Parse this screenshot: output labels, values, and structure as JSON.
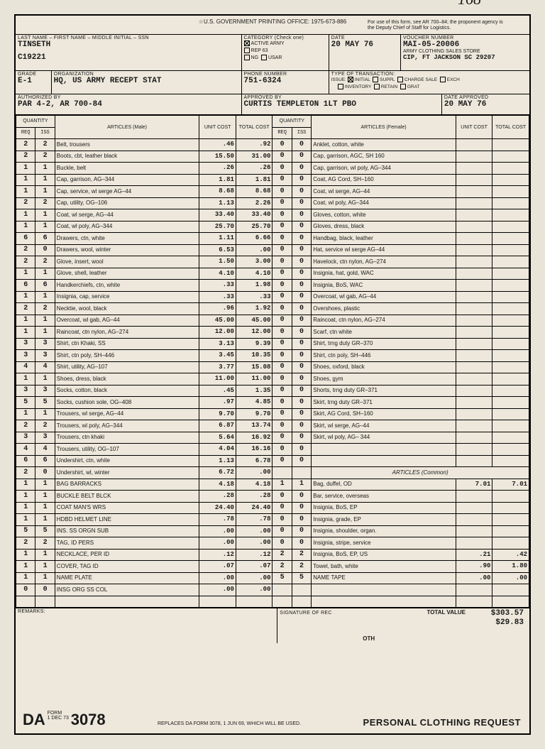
{
  "header": {
    "printing": "☆U.S. GOVERNMENT PRINTING OFFICE: 1975-673-886",
    "forUse": "For use of this form, see AR 700–84; the proponent agency is the Deputy Chief of Staff for Logistics.",
    "handwritten": "168"
  },
  "fields": {
    "nameLabel": "LAST NAME – FIRST NAME – MIDDLE INITIAL – SSN",
    "name": "TINSETH",
    "ssn": "C19221",
    "categoryLabel": "CATEGORY (Check one)",
    "catActive": "ACTIVE ARMY",
    "catRep": "REP 63",
    "catNg": "NG",
    "catUsar": "USAR",
    "dateLabel": "DATE",
    "date": "20 MAY 76",
    "voucherLabel": "VOUCHER NUMBER",
    "voucher": "MAI-05-20006",
    "store": "ARMY CLOTHING SALES STORE",
    "storeAddr": "CIP, FT JACKSON SC 29207",
    "gradeLabel": "GRADE",
    "grade": "E-1",
    "orgLabel": "ORGANIZATION",
    "org": "HQ, US ARMY RECEPT STAT",
    "phoneLabel": "PHONE NUMBER",
    "phone": "751-6324",
    "txnLabel": "TYPE OF TRANSACTION:",
    "txnIssue": "ISSUE:",
    "txnInitial": "INITIAL",
    "txnSuppl": "SUPPL",
    "txnCharge": "CHARGE SALE",
    "txnExch": "EXCH",
    "txnInv": "INVENTORY",
    "txnRetain": "RETAIN",
    "txnGrat": "GRAT",
    "authLabel": "AUTHORIZED BY",
    "auth": "PAR 4-2, AR 700-84",
    "apprLabel": "APPROVED BY",
    "appr": "CURTIS TEMPLETON 1LT PBO",
    "dateApprLabel": "DATE APPROVED",
    "dateAppr": "20 MAY 76"
  },
  "tableHeaders": {
    "qty": "QUANTITY",
    "req": "REQ",
    "iss": "ISS",
    "artM": "ARTICLES (Male)",
    "artF": "ARTICLES (Female)",
    "artC": "ARTICLES (Common)",
    "unit": "UNIT COST",
    "total": "TOTAL COST"
  },
  "male": [
    {
      "r": "2",
      "i": "2",
      "a": "Belt, trousers",
      "u": ".46",
      "t": ".92"
    },
    {
      "r": "2",
      "i": "2",
      "a": "Boots, cbt, leather black",
      "u": "15.50",
      "t": "31.00"
    },
    {
      "r": "1",
      "i": "1",
      "a": "Buckle, belt",
      "u": ".26",
      "t": ".26"
    },
    {
      "r": "1",
      "i": "1",
      "a": "Cap, garrison, AG–344",
      "u": "1.81",
      "t": "1.81"
    },
    {
      "r": "1",
      "i": "1",
      "a": "Cap, service, wl serge AG–44",
      "u": "8.68",
      "t": "8.68"
    },
    {
      "r": "2",
      "i": "2",
      "a": "Cap, utility, OG–106",
      "u": "1.13",
      "t": "2.26"
    },
    {
      "r": "1",
      "i": "1",
      "a": "Coat, wl serge, AG–44",
      "u": "33.40",
      "t": "33.40"
    },
    {
      "r": "1",
      "i": "1",
      "a": "Coat, wl poly, AG–344",
      "u": "25.70",
      "t": "25.70"
    },
    {
      "r": "6",
      "i": "6",
      "a": "Drawers, ctn, white",
      "u": "1.11",
      "t": "6.66"
    },
    {
      "r": "2",
      "i": "0",
      "a": "Drawers, wool, winter",
      "u": "6.53",
      "t": ".00"
    },
    {
      "r": "2",
      "i": "2",
      "a": "Glove, insert, wool",
      "u": "1.50",
      "t": "3.00"
    },
    {
      "r": "1",
      "i": "1",
      "a": "Glove, shell, leather",
      "u": "4.10",
      "t": "4.10"
    },
    {
      "r": "6",
      "i": "6",
      "a": "Handkerchiefs, ctn, white",
      "u": ".33",
      "t": "1.98"
    },
    {
      "r": "1",
      "i": "1",
      "a": "Insignia, cap, service",
      "u": ".33",
      "t": ".33"
    },
    {
      "r": "2",
      "i": "2",
      "a": "Necktie, wool, black",
      "u": ".96",
      "t": "1.92"
    },
    {
      "r": "1",
      "i": "1",
      "a": "Overcoat, wl gab, AG–44",
      "u": "45.00",
      "t": "45.00"
    },
    {
      "r": "1",
      "i": "1",
      "a": "Raincoat, ctn nylon, AG–274",
      "u": "12.00",
      "t": "12.00"
    },
    {
      "r": "3",
      "i": "3",
      "a": "Shirt, ctn Khaki, SS",
      "u": "3.13",
      "t": "9.39"
    },
    {
      "r": "3",
      "i": "3",
      "a": "Shirt, ctn poly, SH–446",
      "u": "3.45",
      "t": "10.35"
    },
    {
      "r": "4",
      "i": "4",
      "a": "Shirt, utility, AG–107",
      "u": "3.77",
      "t": "15.08"
    },
    {
      "r": "1",
      "i": "1",
      "a": "Shoes, dress, black",
      "u": "11.00",
      "t": "11.00"
    },
    {
      "r": "3",
      "i": "3",
      "a": "Socks, cotton, black",
      "u": ".45",
      "t": "1.35"
    },
    {
      "r": "5",
      "i": "5",
      "a": "Socks, cushion sole, OG–408",
      "u": ".97",
      "t": "4.85"
    },
    {
      "r": "1",
      "i": "1",
      "a": "Trousers, wl serge, AG–44",
      "u": "9.70",
      "t": "9.70"
    },
    {
      "r": "2",
      "i": "2",
      "a": "Trousers, wl poly, AG–344",
      "u": "6.87",
      "t": "13.74"
    },
    {
      "r": "3",
      "i": "3",
      "a": "Trousers, ctn khaki",
      "u": "5.64",
      "t": "16.92"
    },
    {
      "r": "4",
      "i": "4",
      "a": "Trousers, utility, OG–107",
      "u": "4.04",
      "t": "16.16"
    },
    {
      "r": "6",
      "i": "6",
      "a": "Undershirt, ctn, white",
      "u": "1.13",
      "t": "6.78"
    },
    {
      "r": "2",
      "i": "0",
      "a": "Undershirt, wl, winter",
      "u": "6.72",
      "t": ".00"
    },
    {
      "r": "1",
      "i": "1",
      "a": "BAG BARRACKS",
      "u": "4.18",
      "t": "4.18"
    },
    {
      "r": "1",
      "i": "1",
      "a": "BUCKLE BELT BLCK",
      "u": ".28",
      "t": ".28"
    },
    {
      "r": "1",
      "i": "1",
      "a": "COAT MAN'S WRS",
      "u": "24.40",
      "t": "24.40"
    },
    {
      "r": "1",
      "i": "1",
      "a": "HDBD HELMET LINE",
      "u": ".78",
      "t": ".78"
    },
    {
      "r": "5",
      "i": "5",
      "a": "INS. SS ORGN SUB",
      "u": ".00",
      "t": ".00"
    },
    {
      "r": "2",
      "i": "2",
      "a": "TAG, ID PERS",
      "u": ".00",
      "t": ".00"
    },
    {
      "r": "1",
      "i": "1",
      "a": "NECKLACE, PER ID",
      "u": ".12",
      "t": ".12"
    },
    {
      "r": "1",
      "i": "1",
      "a": "COVER, TAG ID",
      "u": ".07",
      "t": ".07"
    },
    {
      "r": "1",
      "i": "1",
      "a": "NAME PLATE",
      "u": ".00",
      "t": ".00"
    },
    {
      "r": "0",
      "i": "0",
      "a": "INSG ORG SS COL",
      "u": ".00",
      "t": ".00"
    }
  ],
  "female": [
    {
      "r": "0",
      "i": "0",
      "a": "Anklet, cotton, white"
    },
    {
      "r": "0",
      "i": "0",
      "a": "Cap, garrison, AGC, SH 160"
    },
    {
      "r": "0",
      "i": "0",
      "a": "Cap, garrison, wl poly, AG–344"
    },
    {
      "r": "0",
      "i": "0",
      "a": "Coat, AG Cord, SH–160"
    },
    {
      "r": "0",
      "i": "0",
      "a": "Coat, wl serge, AG–44"
    },
    {
      "r": "0",
      "i": "0",
      "a": "Coat, wl poly, AG–344"
    },
    {
      "r": "0",
      "i": "0",
      "a": "Gloves, cotton, white"
    },
    {
      "r": "0",
      "i": "0",
      "a": "Gloves, dress, black"
    },
    {
      "r": "0",
      "i": "0",
      "a": "Handbag, black, leather"
    },
    {
      "r": "0",
      "i": "0",
      "a": "Hat, service wl serge AG–44"
    },
    {
      "r": "0",
      "i": "0",
      "a": "Havelock, ctn nylon, AG–274"
    },
    {
      "r": "0",
      "i": "0",
      "a": "Insignia, hat, gold, WAC"
    },
    {
      "r": "0",
      "i": "0",
      "a": "Insignia, BoS, WAC"
    },
    {
      "r": "0",
      "i": "0",
      "a": "Overcoat, wl gab, AG–44"
    },
    {
      "r": "0",
      "i": "0",
      "a": "Overshoes, plastic"
    },
    {
      "r": "0",
      "i": "0",
      "a": "Raincoat, ctn nylon, AG–274"
    },
    {
      "r": "0",
      "i": "0",
      "a": "Scarf, ctn white"
    },
    {
      "r": "0",
      "i": "0",
      "a": "Shirt, trng duty GR–370"
    },
    {
      "r": "0",
      "i": "0",
      "a": "Shirt, ctn poly, SH–446"
    },
    {
      "r": "0",
      "i": "0",
      "a": "Shoes, oxford, black"
    },
    {
      "r": "0",
      "i": "0",
      "a": "Shoes, gym"
    },
    {
      "r": "0",
      "i": "0",
      "a": "Shorts, trng duty GR–371"
    },
    {
      "r": "0",
      "i": "0",
      "a": "Skirt, trng duty GR–371"
    },
    {
      "r": "0",
      "i": "0",
      "a": "Skirt, AG Cord, SH–160"
    },
    {
      "r": "0",
      "i": "0",
      "a": "Skirt, wl serge, AG–44"
    },
    {
      "r": "0",
      "i": "0",
      "a": "Skirt, wl poly, AG– 344"
    },
    {
      "r": "0",
      "i": "0",
      "a": ""
    },
    {
      "r": "0",
      "i": "0",
      "a": ""
    },
    {
      "r": "",
      "i": "",
      "a": "ARTICLES (Common)",
      "hdr": true
    },
    {
      "r": "1",
      "i": "1",
      "a": "Bag, duffel, OD",
      "u": "7.01",
      "t": "7.01"
    },
    {
      "r": "0",
      "i": "0",
      "a": "Bar, service, overseas"
    },
    {
      "r": "0",
      "i": "0",
      "a": "Insignia, BoS, EP"
    },
    {
      "r": "0",
      "i": "0",
      "a": "Insignia, grade, EP"
    },
    {
      "r": "0",
      "i": "0",
      "a": "Insignia, shoulder, organ."
    },
    {
      "r": "0",
      "i": "0",
      "a": "Insignia, stripe, service"
    },
    {
      "r": "2",
      "i": "2",
      "a": "Insignia, BoS, EP, US",
      "u": ".21",
      "t": ".42"
    },
    {
      "r": "2",
      "i": "2",
      "a": "Towel, bath, white",
      "u": ".90",
      "t": "1.80"
    },
    {
      "r": "5",
      "i": "5",
      "a": "NAME TAPE",
      "u": ".00",
      "t": ".00"
    },
    {
      "r": "",
      "i": "",
      "a": ""
    },
    {
      "r": "",
      "i": "",
      "a": ""
    }
  ],
  "totals": {
    "remarksLabel": "REMARKS:",
    "sigLabel": "SIGNATURE OF REC",
    "totalLabel": "TOTAL VALUE",
    "total": "$303.57",
    "other": "$29.83",
    "othLabel": "OTH"
  },
  "footer": {
    "da": "DA",
    "form": "FORM",
    "date": "1 DEC 73",
    "num": "3078",
    "replaces": "REPLACES DA FORM 3078, 1 JUN 69, WHICH WILL BE USED.",
    "title": "PERSONAL CLOTHING REQUEST"
  }
}
